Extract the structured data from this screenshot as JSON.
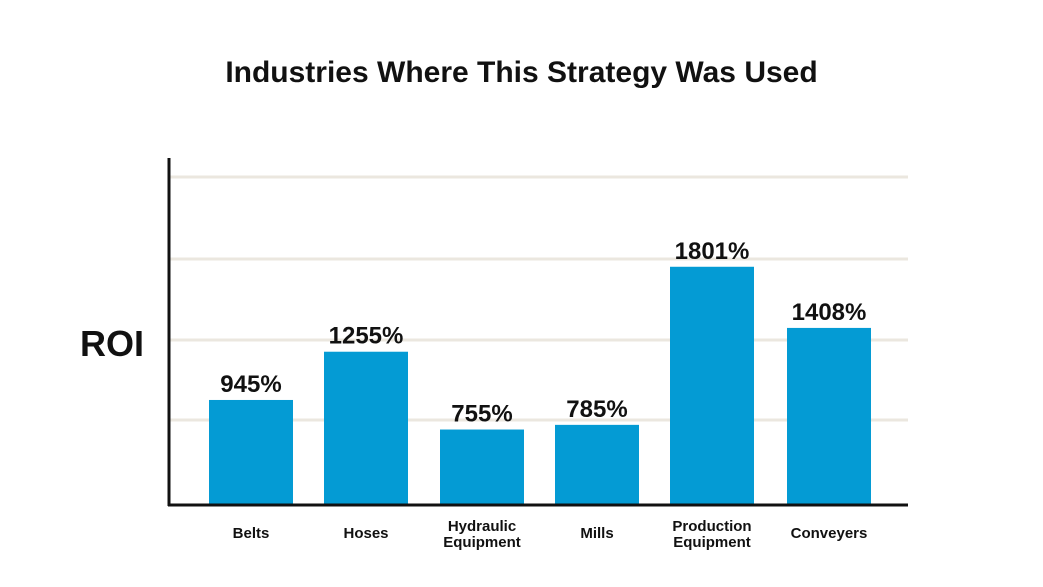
{
  "chart_data": {
    "type": "bar",
    "title": "Industries Where This Strategy Was Used",
    "ylabel": "ROI",
    "xlabel": "",
    "categories": [
      [
        "Belts"
      ],
      [
        "Hoses"
      ],
      [
        "Hydraulic",
        "Equipment"
      ],
      [
        "Mills"
      ],
      [
        "Production",
        "Equipment"
      ],
      [
        "Conveyers"
      ]
    ],
    "values": [
      945,
      1255,
      755,
      785,
      1801,
      1408
    ],
    "data_labels": [
      "945%",
      "1255%",
      "755%",
      "785%",
      "1801%",
      "1408%"
    ],
    "ylim": [
      270,
      2500
    ],
    "grid": true,
    "bar_color": "#049bd4",
    "grid_color": "#ebe7df",
    "axis_color": "#111111"
  }
}
